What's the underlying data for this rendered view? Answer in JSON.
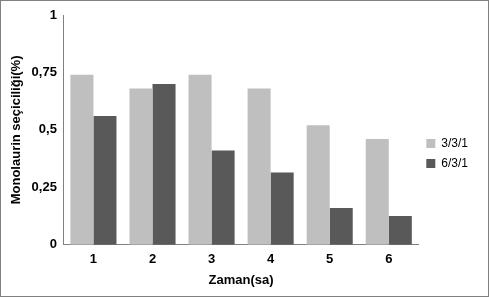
{
  "chart_data": {
    "type": "bar",
    "x_label": "Zaman(sa)",
    "y_label": "Monolaurin seçiciliği(%)",
    "categories": [
      "1",
      "2",
      "3",
      "4",
      "5",
      "6"
    ],
    "series": [
      {
        "name": "3/3/1",
        "color": "#bfbfbf",
        "values": [
          0.74,
          0.68,
          0.74,
          0.68,
          0.52,
          0.46
        ]
      },
      {
        "name": "6/3/1",
        "color": "#595959",
        "values": [
          0.56,
          0.7,
          0.41,
          0.315,
          0.16,
          0.125
        ]
      }
    ],
    "ylim": [
      0,
      1
    ],
    "yticks": [
      0,
      {
        "value": 0.25,
        "label": "0,25"
      },
      {
        "value": 0.5,
        "label": "0,5"
      },
      {
        "value": 0.75,
        "label": "0,75"
      },
      1
    ],
    "grid": false,
    "legend": "right"
  }
}
